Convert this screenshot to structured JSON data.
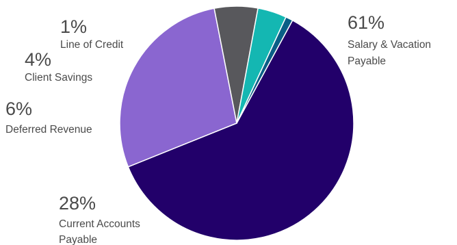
{
  "chart_data": {
    "type": "pie",
    "title": "",
    "slices": [
      {
        "label": [
          "Salary & Vacation",
          "Payable"
        ],
        "value": 61,
        "percent_label": "61%",
        "color": "#22006a"
      },
      {
        "label": [
          "Current Accounts",
          "Payable"
        ],
        "value": 28,
        "percent_label": "28%",
        "color": "#8a66d0"
      },
      {
        "label": [
          "Deferred Revenue"
        ],
        "value": 6,
        "percent_label": "6%",
        "color": "#58585c"
      },
      {
        "label": [
          "Client Savings"
        ],
        "value": 4,
        "percent_label": "4%",
        "color": "#14b7b2"
      },
      {
        "label": [
          "Line of Credit"
        ],
        "value": 1,
        "percent_label": "1%",
        "color": "#0a5e86"
      }
    ],
    "legend": "none"
  }
}
